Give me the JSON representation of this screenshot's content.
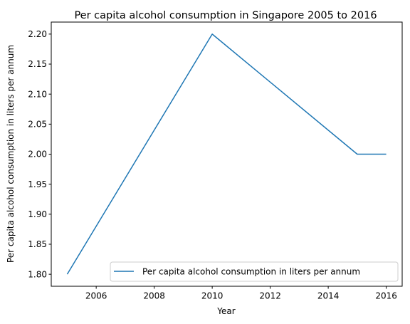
{
  "chart_data": {
    "type": "line",
    "title": "Per capita alcohol consumption in Singapore 2005 to 2016",
    "xlabel": "Year",
    "ylabel": "Per capita alcohol consumption in liters per annum",
    "x": [
      2005,
      2010,
      2015,
      2016
    ],
    "series": [
      {
        "name": "Per capita alcohol consumption in liters per annum",
        "values": [
          1.8,
          2.2,
          2.0,
          2.0
        ],
        "color": "#1f77b4"
      }
    ],
    "xlim": [
      2004.45,
      2016.55
    ],
    "ylim": [
      1.78,
      2.22
    ],
    "x_ticks": [
      "2006",
      "2008",
      "2010",
      "2012",
      "2014",
      "2016"
    ],
    "y_ticks": [
      "1.80",
      "1.85",
      "1.90",
      "1.95",
      "2.00",
      "2.05",
      "2.10",
      "2.15",
      "2.20"
    ],
    "grid": false,
    "legend_position": "lower right"
  }
}
